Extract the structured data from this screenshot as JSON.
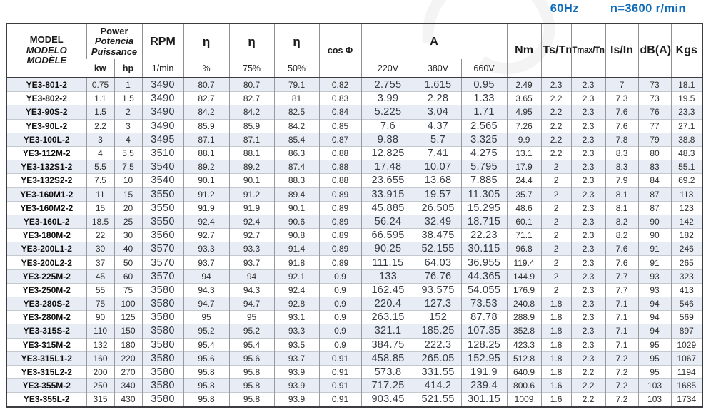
{
  "note": {
    "frequency": "60Hz",
    "speed": "n=3600 r/min"
  },
  "colors": {
    "note_blue": "#0f6cb8",
    "stripe_row": "#e8ecf4",
    "outer_border": "#3d3d41",
    "grid_vertical": "#999a9e",
    "grid_horizontal": "#c4c8cf"
  },
  "table": {
    "header": {
      "model_lines": [
        "MODEL",
        "MODELO",
        "MODÈLE"
      ],
      "power_lines": [
        "Power",
        "Potencia",
        "Puissance"
      ],
      "power_units": [
        "kw",
        "hp"
      ],
      "rpm": "RPM",
      "rpm_unit": "1/min",
      "eta": "η",
      "eta_units": [
        "%",
        "75%",
        "50%"
      ],
      "cos_phi": "cos Φ",
      "amps": "A",
      "amp_volts": [
        "220V",
        "380V",
        "660V"
      ],
      "nm": "Nm",
      "ts_tn": "Ts/Tn",
      "tmax_tn": "Tmax/Tn",
      "is_in": "Is/In",
      "db": "dB(A)",
      "kgs": "Kgs"
    },
    "columns": [
      {
        "key": "model",
        "class": "c-model"
      },
      {
        "key": "kw",
        "class": ""
      },
      {
        "key": "hp",
        "class": ""
      },
      {
        "key": "rpm",
        "class": "big"
      },
      {
        "key": "eta",
        "class": ""
      },
      {
        "key": "eta75",
        "class": ""
      },
      {
        "key": "eta50",
        "class": ""
      },
      {
        "key": "cos-phi",
        "class": ""
      },
      {
        "key": "amps-220v",
        "class": "big"
      },
      {
        "key": "amps-380v",
        "class": "big"
      },
      {
        "key": "amps-660v",
        "class": "big"
      },
      {
        "key": "nm",
        "class": ""
      },
      {
        "key": "ts-tn",
        "class": ""
      },
      {
        "key": "tmax-tn",
        "class": ""
      },
      {
        "key": "is-in",
        "class": ""
      },
      {
        "key": "db",
        "class": ""
      },
      {
        "key": "kgs",
        "class": ""
      }
    ],
    "rows": [
      [
        "YE3-801-2",
        "0.75",
        "1",
        "3490",
        "80.7",
        "80.7",
        "79.1",
        "0.82",
        "2.755",
        "1.615",
        "0.95",
        "2.49",
        "2.3",
        "2.3",
        "7",
        "73",
        "18.1"
      ],
      [
        "YE3-802-2",
        "1.1",
        "1.5",
        "3490",
        "82.7",
        "82.7",
        "81",
        "0.83",
        "3.99",
        "2.28",
        "1.33",
        "3.65",
        "2.2",
        "2.3",
        "7.3",
        "73",
        "19.5"
      ],
      [
        "YE3-90S-2",
        "1.5",
        "2",
        "3490",
        "84.2",
        "84.2",
        "82.5",
        "0.84",
        "5.225",
        "3.04",
        "1.71",
        "4.95",
        "2.2",
        "2.3",
        "7.6",
        "76",
        "23.3"
      ],
      [
        "YE3-90L-2",
        "2.2",
        "3",
        "3490",
        "85.9",
        "85.9",
        "84.2",
        "0.85",
        "7.6",
        "4.37",
        "2.565",
        "7.26",
        "2.2",
        "2.3",
        "7.6",
        "77",
        "27.1"
      ],
      [
        "YE3-100L-2",
        "3",
        "4",
        "3495",
        "87.1",
        "87.1",
        "85.4",
        "0.87",
        "9.88",
        "5.7",
        "3.325",
        "9.9",
        "2.2",
        "2.3",
        "7.8",
        "79",
        "38.8"
      ],
      [
        "YE3-112M-2",
        "4",
        "5.5",
        "3510",
        "88.1",
        "88.1",
        "86.3",
        "0.88",
        "12.825",
        "7.41",
        "4.275",
        "13.1",
        "2.2",
        "2.3",
        "8.3",
        "80",
        "48.3"
      ],
      [
        "YE3-132S1-2",
        "5.5",
        "7.5",
        "3540",
        "89.2",
        "89.2",
        "87.4",
        "0.88",
        "17.48",
        "10.07",
        "5.795",
        "17.9",
        "2",
        "2.3",
        "8.3",
        "83",
        "55.1"
      ],
      [
        "YE3-132S2-2",
        "7.5",
        "10",
        "3540",
        "90.1",
        "90.1",
        "88.3",
        "0.88",
        "23.655",
        "13.68",
        "7.885",
        "24.4",
        "2",
        "2.3",
        "7.9",
        "84",
        "69.2"
      ],
      [
        "YE3-160M1-2",
        "11",
        "15",
        "3550",
        "91.2",
        "91.2",
        "89.4",
        "0.89",
        "33.915",
        "19.57",
        "11.305",
        "35.7",
        "2",
        "2.3",
        "8.1",
        "87",
        "113"
      ],
      [
        "YE3-160M2-2",
        "15",
        "20",
        "3550",
        "91.9",
        "91.9",
        "90.1",
        "0.89",
        "45.885",
        "26.505",
        "15.295",
        "48.6",
        "2",
        "2.3",
        "8.1",
        "87",
        "123"
      ],
      [
        "YE3-160L-2",
        "18.5",
        "25",
        "3550",
        "92.4",
        "92.4",
        "90.6",
        "0.89",
        "56.24",
        "32.49",
        "18.715",
        "60.1",
        "2",
        "2.3",
        "8.2",
        "90",
        "142"
      ],
      [
        "YE3-180M-2",
        "22",
        "30",
        "3560",
        "92.7",
        "92.7",
        "90.8",
        "0.89",
        "66.595",
        "38.475",
        "22.23",
        "71.1",
        "2",
        "2.3",
        "8.2",
        "90",
        "182"
      ],
      [
        "YE3-200L1-2",
        "30",
        "40",
        "3570",
        "93.3",
        "93.3",
        "91.4",
        "0.89",
        "90.25",
        "52.155",
        "30.115",
        "96.8",
        "2",
        "2.3",
        "7.6",
        "91",
        "246"
      ],
      [
        "YE3-200L2-2",
        "37",
        "50",
        "3570",
        "93.7",
        "93.7",
        "91.8",
        "0.89",
        "111.15",
        "64.03",
        "36.955",
        "119.4",
        "2",
        "2.3",
        "7.6",
        "91",
        "265"
      ],
      [
        "YE3-225M-2",
        "45",
        "60",
        "3570",
        "94",
        "94",
        "92.1",
        "0.9",
        "133",
        "76.76",
        "44.365",
        "144.9",
        "2",
        "2.3",
        "7.7",
        "93",
        "323"
      ],
      [
        "YE3-250M-2",
        "55",
        "75",
        "3580",
        "94.3",
        "94.3",
        "92.4",
        "0.9",
        "162.45",
        "93.575",
        "54.055",
        "176.9",
        "2",
        "2.3",
        "7.7",
        "93",
        "413"
      ],
      [
        "YE3-280S-2",
        "75",
        "100",
        "3580",
        "94.7",
        "94.7",
        "92.8",
        "0.9",
        "220.4",
        "127.3",
        "73.53",
        "240.8",
        "1.8",
        "2.3",
        "7.1",
        "94",
        "546"
      ],
      [
        "YE3-280M-2",
        "90",
        "125",
        "3580",
        "95",
        "95",
        "93.1",
        "0.9",
        "263.15",
        "152",
        "87.78",
        "288.9",
        "1.8",
        "2.3",
        "7.1",
        "94",
        "569"
      ],
      [
        "YE3-315S-2",
        "110",
        "150",
        "3580",
        "95.2",
        "95.2",
        "93.3",
        "0.9",
        "321.1",
        "185.25",
        "107.35",
        "352.8",
        "1.8",
        "2.3",
        "7.1",
        "94",
        "897"
      ],
      [
        "YE3-315M-2",
        "132",
        "180",
        "3580",
        "95.4",
        "95.4",
        "93.5",
        "0.9",
        "384.75",
        "222.3",
        "128.25",
        "423.3",
        "1.8",
        "2.3",
        "7.1",
        "95",
        "1029"
      ],
      [
        "YE3-315L1-2",
        "160",
        "220",
        "3580",
        "95.6",
        "95.6",
        "93.7",
        "0.91",
        "458.85",
        "265.05",
        "152.95",
        "512.8",
        "1.8",
        "2.3",
        "7.2",
        "95",
        "1067"
      ],
      [
        "YE3-315L2-2",
        "200",
        "270",
        "3580",
        "95.8",
        "95.8",
        "93.9",
        "0.91",
        "573.8",
        "331.55",
        "191.9",
        "640.9",
        "1.8",
        "2.2",
        "7.2",
        "95",
        "1194"
      ],
      [
        "YE3-355M-2",
        "250",
        "340",
        "3580",
        "95.8",
        "95.8",
        "93.9",
        "0.91",
        "717.25",
        "414.2",
        "239.4",
        "800.6",
        "1.6",
        "2.2",
        "7.2",
        "103",
        "1685"
      ],
      [
        "YE3-355L-2",
        "315",
        "430",
        "3580",
        "95.8",
        "95.8",
        "93.9",
        "0.91",
        "903.45",
        "521.55",
        "301.15",
        "1009",
        "1.6",
        "2.2",
        "7.2",
        "103",
        "1734"
      ]
    ]
  }
}
